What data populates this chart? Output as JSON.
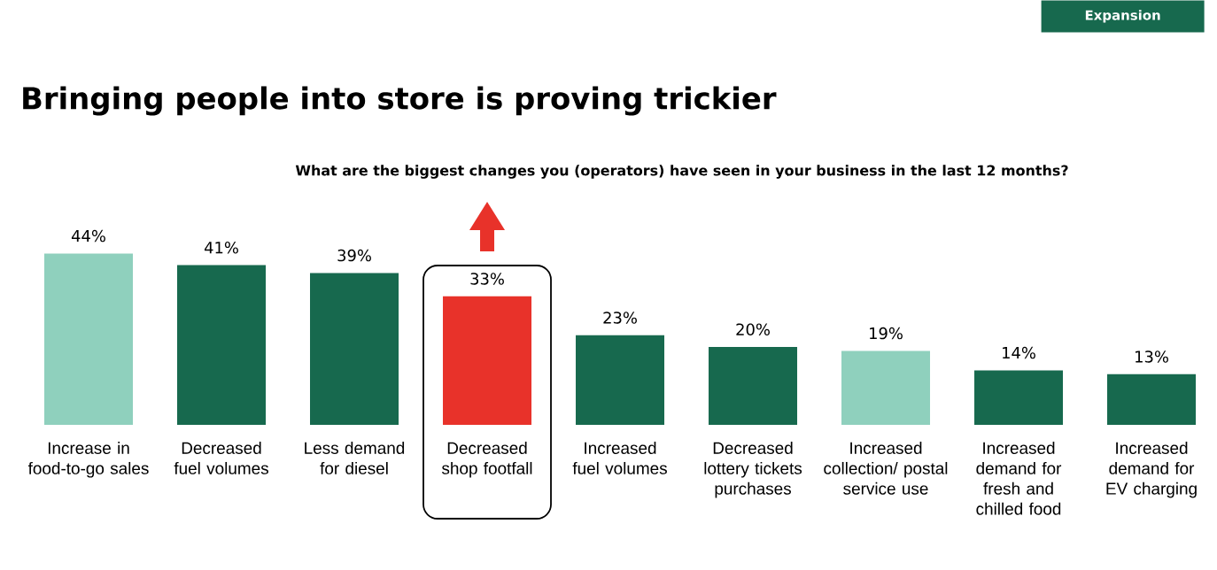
{
  "chart_data": {
    "type": "bar",
    "title": "Bringing people into store is proving trickier",
    "subtitle": "What are the biggest changes you (operators) have seen in your business in the last 12 months?",
    "categories": [
      "Increase in food-to-go sales",
      "Decreased fuel volumes",
      "Less demand for diesel",
      "Decreased shop footfall",
      "Increased fuel volumes",
      "Decreased lottery tickets purchases",
      "Increased collection/ postal service use",
      "Increased demand for fresh and chilled food",
      "Increased demand for EV charging"
    ],
    "values": [
      44,
      41,
      39,
      33,
      23,
      20,
      19,
      14,
      13
    ],
    "value_labels": [
      "44%",
      "41%",
      "39%",
      "33%",
      "23%",
      "20%",
      "19%",
      "14%",
      "13%"
    ],
    "colors": [
      "#8fd0bd",
      "#17694e",
      "#17694e",
      "#e8322a",
      "#17694e",
      "#17694e",
      "#8fd0bd",
      "#17694e",
      "#17694e"
    ],
    "annotations": [
      "Expansion"
    ]
  }
}
